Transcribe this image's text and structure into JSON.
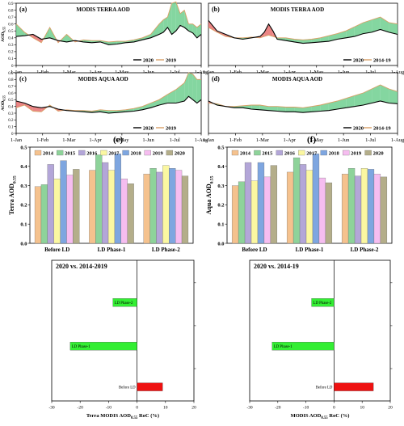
{
  "chart_data": [
    {
      "id": "a",
      "type": "area",
      "panel_label": "(a)",
      "title": "MODIS TERRA AOD",
      "ylabel": "AOD",
      "ylabel_sub": "0.55",
      "yticks": [
        "0.9",
        "0.8",
        "0.7",
        "0.6",
        "0.5",
        "0.4",
        "0.3",
        "0.2",
        "0.1",
        "0"
      ],
      "ylim": [
        0,
        0.9
      ],
      "xticks": [
        "1-Jan",
        "1-Feb",
        "1-Mar",
        "1-Apr",
        "1-May",
        "1-Jun",
        "1-Jul",
        "1-Aug"
      ],
      "xlim": [
        0,
        220
      ],
      "legend": [
        {
          "name": "2020",
          "color": "#000000"
        },
        {
          "name": "2019",
          "color": "#d9a066"
        }
      ],
      "fill_colors": {
        "above": "#e87070",
        "below": "#6fcf8f"
      },
      "series": [
        {
          "name": "2020",
          "x": [
            0,
            10,
            20,
            30,
            40,
            50,
            60,
            70,
            80,
            90,
            100,
            110,
            120,
            130,
            140,
            150,
            160,
            170,
            175,
            180,
            185,
            190,
            195,
            200,
            205,
            210,
            215,
            220
          ],
          "values": [
            0.42,
            0.43,
            0.45,
            0.38,
            0.4,
            0.36,
            0.34,
            0.36,
            0.34,
            0.33,
            0.34,
            0.3,
            0.31,
            0.33,
            0.34,
            0.37,
            0.4,
            0.45,
            0.48,
            0.55,
            0.45,
            0.5,
            0.58,
            0.55,
            0.5,
            0.47,
            0.4,
            0.45
          ]
        },
        {
          "name": "2019",
          "x": [
            0,
            10,
            20,
            30,
            40,
            50,
            60,
            70,
            80,
            90,
            100,
            110,
            120,
            130,
            140,
            150,
            160,
            170,
            175,
            180,
            185,
            190,
            195,
            200,
            205,
            210,
            215,
            220
          ],
          "values": [
            0.6,
            0.48,
            0.4,
            0.33,
            0.55,
            0.33,
            0.45,
            0.34,
            0.37,
            0.36,
            0.36,
            0.34,
            0.35,
            0.35,
            0.37,
            0.4,
            0.45,
            0.6,
            0.66,
            0.7,
            0.9,
            0.92,
            0.75,
            0.8,
            0.6,
            0.6,
            0.55,
            0.6
          ]
        }
      ]
    },
    {
      "id": "b",
      "type": "area",
      "panel_label": "(b)",
      "title": "MODIS TERRA AOD",
      "ylabel": "",
      "ylabel_sub": "",
      "yticks": [],
      "ylim": [
        0,
        0.9
      ],
      "xticks": [
        "1-Jan",
        "1-Feb",
        "1-Mar",
        "1-Apr",
        "1-May",
        "1-Jun",
        "1-Jul",
        "1-Aug"
      ],
      "xlim": [
        0,
        220
      ],
      "legend": [
        {
          "name": "2020",
          "color": "#000000"
        },
        {
          "name": "2014-19",
          "color": "#d9a066"
        }
      ],
      "fill_colors": {
        "above": "#e87070",
        "below": "#6fcf8f"
      },
      "series": [
        {
          "name": "2020",
          "x": [
            0,
            10,
            20,
            30,
            40,
            50,
            60,
            65,
            70,
            75,
            80,
            90,
            100,
            110,
            120,
            130,
            140,
            150,
            160,
            170,
            180,
            190,
            200,
            210,
            220
          ],
          "values": [
            0.65,
            0.5,
            0.45,
            0.4,
            0.38,
            0.4,
            0.42,
            0.48,
            0.6,
            0.5,
            0.38,
            0.36,
            0.34,
            0.32,
            0.33,
            0.34,
            0.35,
            0.38,
            0.4,
            0.42,
            0.46,
            0.48,
            0.52,
            0.48,
            0.45
          ]
        },
        {
          "name": "2014-19",
          "x": [
            0,
            10,
            20,
            30,
            40,
            50,
            60,
            65,
            70,
            75,
            80,
            90,
            100,
            110,
            120,
            130,
            140,
            150,
            160,
            170,
            180,
            190,
            200,
            210,
            220
          ],
          "values": [
            0.55,
            0.48,
            0.42,
            0.4,
            0.4,
            0.41,
            0.4,
            0.42,
            0.44,
            0.42,
            0.4,
            0.4,
            0.38,
            0.37,
            0.38,
            0.4,
            0.43,
            0.46,
            0.5,
            0.56,
            0.62,
            0.66,
            0.7,
            0.62,
            0.6
          ]
        }
      ]
    },
    {
      "id": "c",
      "type": "area",
      "panel_label": "(c)",
      "title": "MODIS AQUA AOD",
      "ylabel": "AOD",
      "ylabel_sub": "0.55",
      "yticks": [
        "0.9",
        "0.8",
        "0.7",
        "0.6",
        "0.5",
        "0.4",
        "0.3",
        "0.2",
        "0.1",
        "0"
      ],
      "ylim": [
        0,
        0.9
      ],
      "xticks": [
        "1-Jan",
        "1-Feb",
        "1-Mar",
        "1-Apr",
        "1-May",
        "1-Jun",
        "1-Jul",
        "1-Aug"
      ],
      "xlim": [
        0,
        220
      ],
      "legend": [
        {
          "name": "2020",
          "color": "#000000"
        },
        {
          "name": "2019",
          "color": "#d9a066"
        }
      ],
      "fill_colors": {
        "above": "#e87070",
        "below": "#6fcf8f"
      },
      "series": [
        {
          "name": "2020",
          "x": [
            0,
            10,
            20,
            30,
            40,
            50,
            60,
            70,
            80,
            90,
            100,
            110,
            120,
            130,
            140,
            150,
            160,
            170,
            180,
            190,
            200,
            205,
            210,
            215,
            220
          ],
          "values": [
            0.48,
            0.45,
            0.4,
            0.38,
            0.4,
            0.36,
            0.34,
            0.33,
            0.32,
            0.31,
            0.32,
            0.3,
            0.31,
            0.32,
            0.33,
            0.35,
            0.38,
            0.42,
            0.45,
            0.45,
            0.48,
            0.55,
            0.5,
            0.45,
            0.5
          ]
        },
        {
          "name": "2019",
          "x": [
            0,
            10,
            20,
            30,
            40,
            50,
            60,
            70,
            80,
            90,
            100,
            110,
            120,
            130,
            140,
            150,
            160,
            170,
            180,
            190,
            200,
            205,
            210,
            215,
            220
          ],
          "values": [
            0.38,
            0.42,
            0.33,
            0.32,
            0.42,
            0.33,
            0.35,
            0.34,
            0.34,
            0.33,
            0.35,
            0.34,
            0.34,
            0.35,
            0.37,
            0.4,
            0.45,
            0.5,
            0.58,
            0.65,
            0.75,
            0.9,
            0.88,
            0.8,
            0.8
          ]
        }
      ]
    },
    {
      "id": "d",
      "type": "area",
      "panel_label": "(d)",
      "title": "MODIS AQUA AOD",
      "ylabel": "",
      "ylabel_sub": "",
      "yticks": [],
      "ylim": [
        0,
        0.9
      ],
      "xticks": [
        "1-Jan",
        "1-Feb",
        "1-Mar",
        "1-Apr",
        "1-May",
        "1-Jun",
        "1-Jul",
        "1-Aug"
      ],
      "xlim": [
        0,
        220
      ],
      "legend": [
        {
          "name": "2020",
          "color": "#000000"
        },
        {
          "name": "2014-19",
          "color": "#d9a066"
        }
      ],
      "fill_colors": {
        "above": "#e87070",
        "below": "#6fcf8f"
      },
      "series": [
        {
          "name": "2020",
          "x": [
            0,
            10,
            20,
            30,
            40,
            50,
            60,
            70,
            80,
            90,
            100,
            110,
            120,
            130,
            140,
            150,
            160,
            170,
            180,
            190,
            200,
            210,
            220
          ],
          "values": [
            0.48,
            0.42,
            0.4,
            0.38,
            0.38,
            0.36,
            0.35,
            0.34,
            0.33,
            0.32,
            0.32,
            0.31,
            0.32,
            0.33,
            0.34,
            0.36,
            0.38,
            0.4,
            0.42,
            0.45,
            0.48,
            0.45,
            0.44
          ]
        },
        {
          "name": "2014-19",
          "x": [
            0,
            10,
            20,
            30,
            40,
            50,
            60,
            70,
            80,
            90,
            100,
            110,
            120,
            130,
            140,
            150,
            160,
            170,
            180,
            190,
            200,
            210,
            220
          ],
          "values": [
            0.45,
            0.44,
            0.4,
            0.4,
            0.41,
            0.42,
            0.42,
            0.4,
            0.4,
            0.39,
            0.39,
            0.38,
            0.4,
            0.42,
            0.45,
            0.48,
            0.52,
            0.56,
            0.6,
            0.66,
            0.72,
            0.66,
            0.62
          ]
        }
      ]
    },
    {
      "id": "e",
      "type": "bar",
      "panel_label": "(e)",
      "ylabel": "Terra AOD",
      "ylabel_sub": "0.55",
      "yticks": [
        "0.5",
        "0.4",
        "0.3",
        "0.2",
        "0.1",
        "0.0"
      ],
      "ylim": [
        0,
        0.5
      ],
      "categories": [
        "Before LD",
        "LD Phase-1",
        "LD Phase-2"
      ],
      "series": [
        {
          "name": "2014",
          "color": "#f5c28e",
          "values": [
            0.295,
            0.38,
            0.36
          ]
        },
        {
          "name": "2015",
          "color": "#8ed39a",
          "values": [
            0.305,
            0.46,
            0.39
          ]
        },
        {
          "name": "2016",
          "color": "#b3a6d8",
          "values": [
            0.41,
            0.42,
            0.37
          ]
        },
        {
          "name": "2017",
          "color": "#fbf7a1",
          "values": [
            0.335,
            0.38,
            0.405
          ]
        },
        {
          "name": "2018",
          "color": "#7ea6e0",
          "values": [
            0.43,
            0.465,
            0.39
          ]
        },
        {
          "name": "2019",
          "color": "#f6bdf0",
          "values": [
            0.355,
            0.335,
            0.38
          ]
        },
        {
          "name": "2020",
          "color": "#b4ae8a",
          "values": [
            0.385,
            0.31,
            0.35
          ]
        }
      ]
    },
    {
      "id": "f",
      "type": "bar",
      "panel_label": "(f)",
      "ylabel": "Aqua AOD",
      "ylabel_sub": "0.55",
      "yticks": [
        "0.5",
        "0.4",
        "0.3",
        "0.2",
        "0.1",
        "0.0"
      ],
      "ylim": [
        0,
        0.5
      ],
      "categories": [
        "Before LD",
        "LD Phase-1",
        "LD Phase-2"
      ],
      "series": [
        {
          "name": "2014",
          "color": "#f5c28e",
          "values": [
            0.3,
            0.37,
            0.36
          ]
        },
        {
          "name": "2015",
          "color": "#8ed39a",
          "values": [
            0.32,
            0.445,
            0.39
          ]
        },
        {
          "name": "2016",
          "color": "#b3a6d8",
          "values": [
            0.42,
            0.41,
            0.35
          ]
        },
        {
          "name": "2017",
          "color": "#fbf7a1",
          "values": [
            0.325,
            0.38,
            0.39
          ]
        },
        {
          "name": "2018",
          "color": "#7ea6e0",
          "values": [
            0.42,
            0.465,
            0.385
          ]
        },
        {
          "name": "2019",
          "color": "#f6bdf0",
          "values": [
            0.345,
            0.34,
            0.36
          ]
        },
        {
          "name": "2020",
          "color": "#b4ae8a",
          "values": [
            0.405,
            0.315,
            0.345
          ]
        }
      ]
    },
    {
      "id": "g",
      "type": "bar",
      "orientation": "horizontal",
      "title": "2020 vs. 2014-2019",
      "xlabel": "Terra  MODIS AOD",
      "xlabel_sub": "0.55",
      "xlabel_suffix": " RoC (%)",
      "xticks": [
        "-30",
        "-20",
        "-10",
        "0",
        "10",
        "20"
      ],
      "xlim": [
        -30,
        20
      ],
      "categories": [
        "LD Phase-2",
        "LD Phase-1",
        "Before LD"
      ],
      "values": [
        -8.5,
        -23.5,
        9
      ],
      "colors": [
        "#33ee33",
        "#33ee33",
        "#ee1111"
      ]
    },
    {
      "id": "h",
      "type": "bar",
      "orientation": "horizontal",
      "title": "2020 vs. 2014-19",
      "xlabel": "MODIS  AOD",
      "xlabel_sub": "0.55",
      "xlabel_suffix": " RoC (%)",
      "xticks": [
        "-30",
        "-20",
        "-10",
        "0",
        "10",
        "20"
      ],
      "xlim": [
        -30,
        20
      ],
      "categories": [
        "LD Phase-2",
        "LD Phase-1",
        "Before LD"
      ],
      "values": [
        -8,
        -22,
        14
      ],
      "colors": [
        "#33ee33",
        "#33ee33",
        "#ee1111"
      ]
    }
  ]
}
